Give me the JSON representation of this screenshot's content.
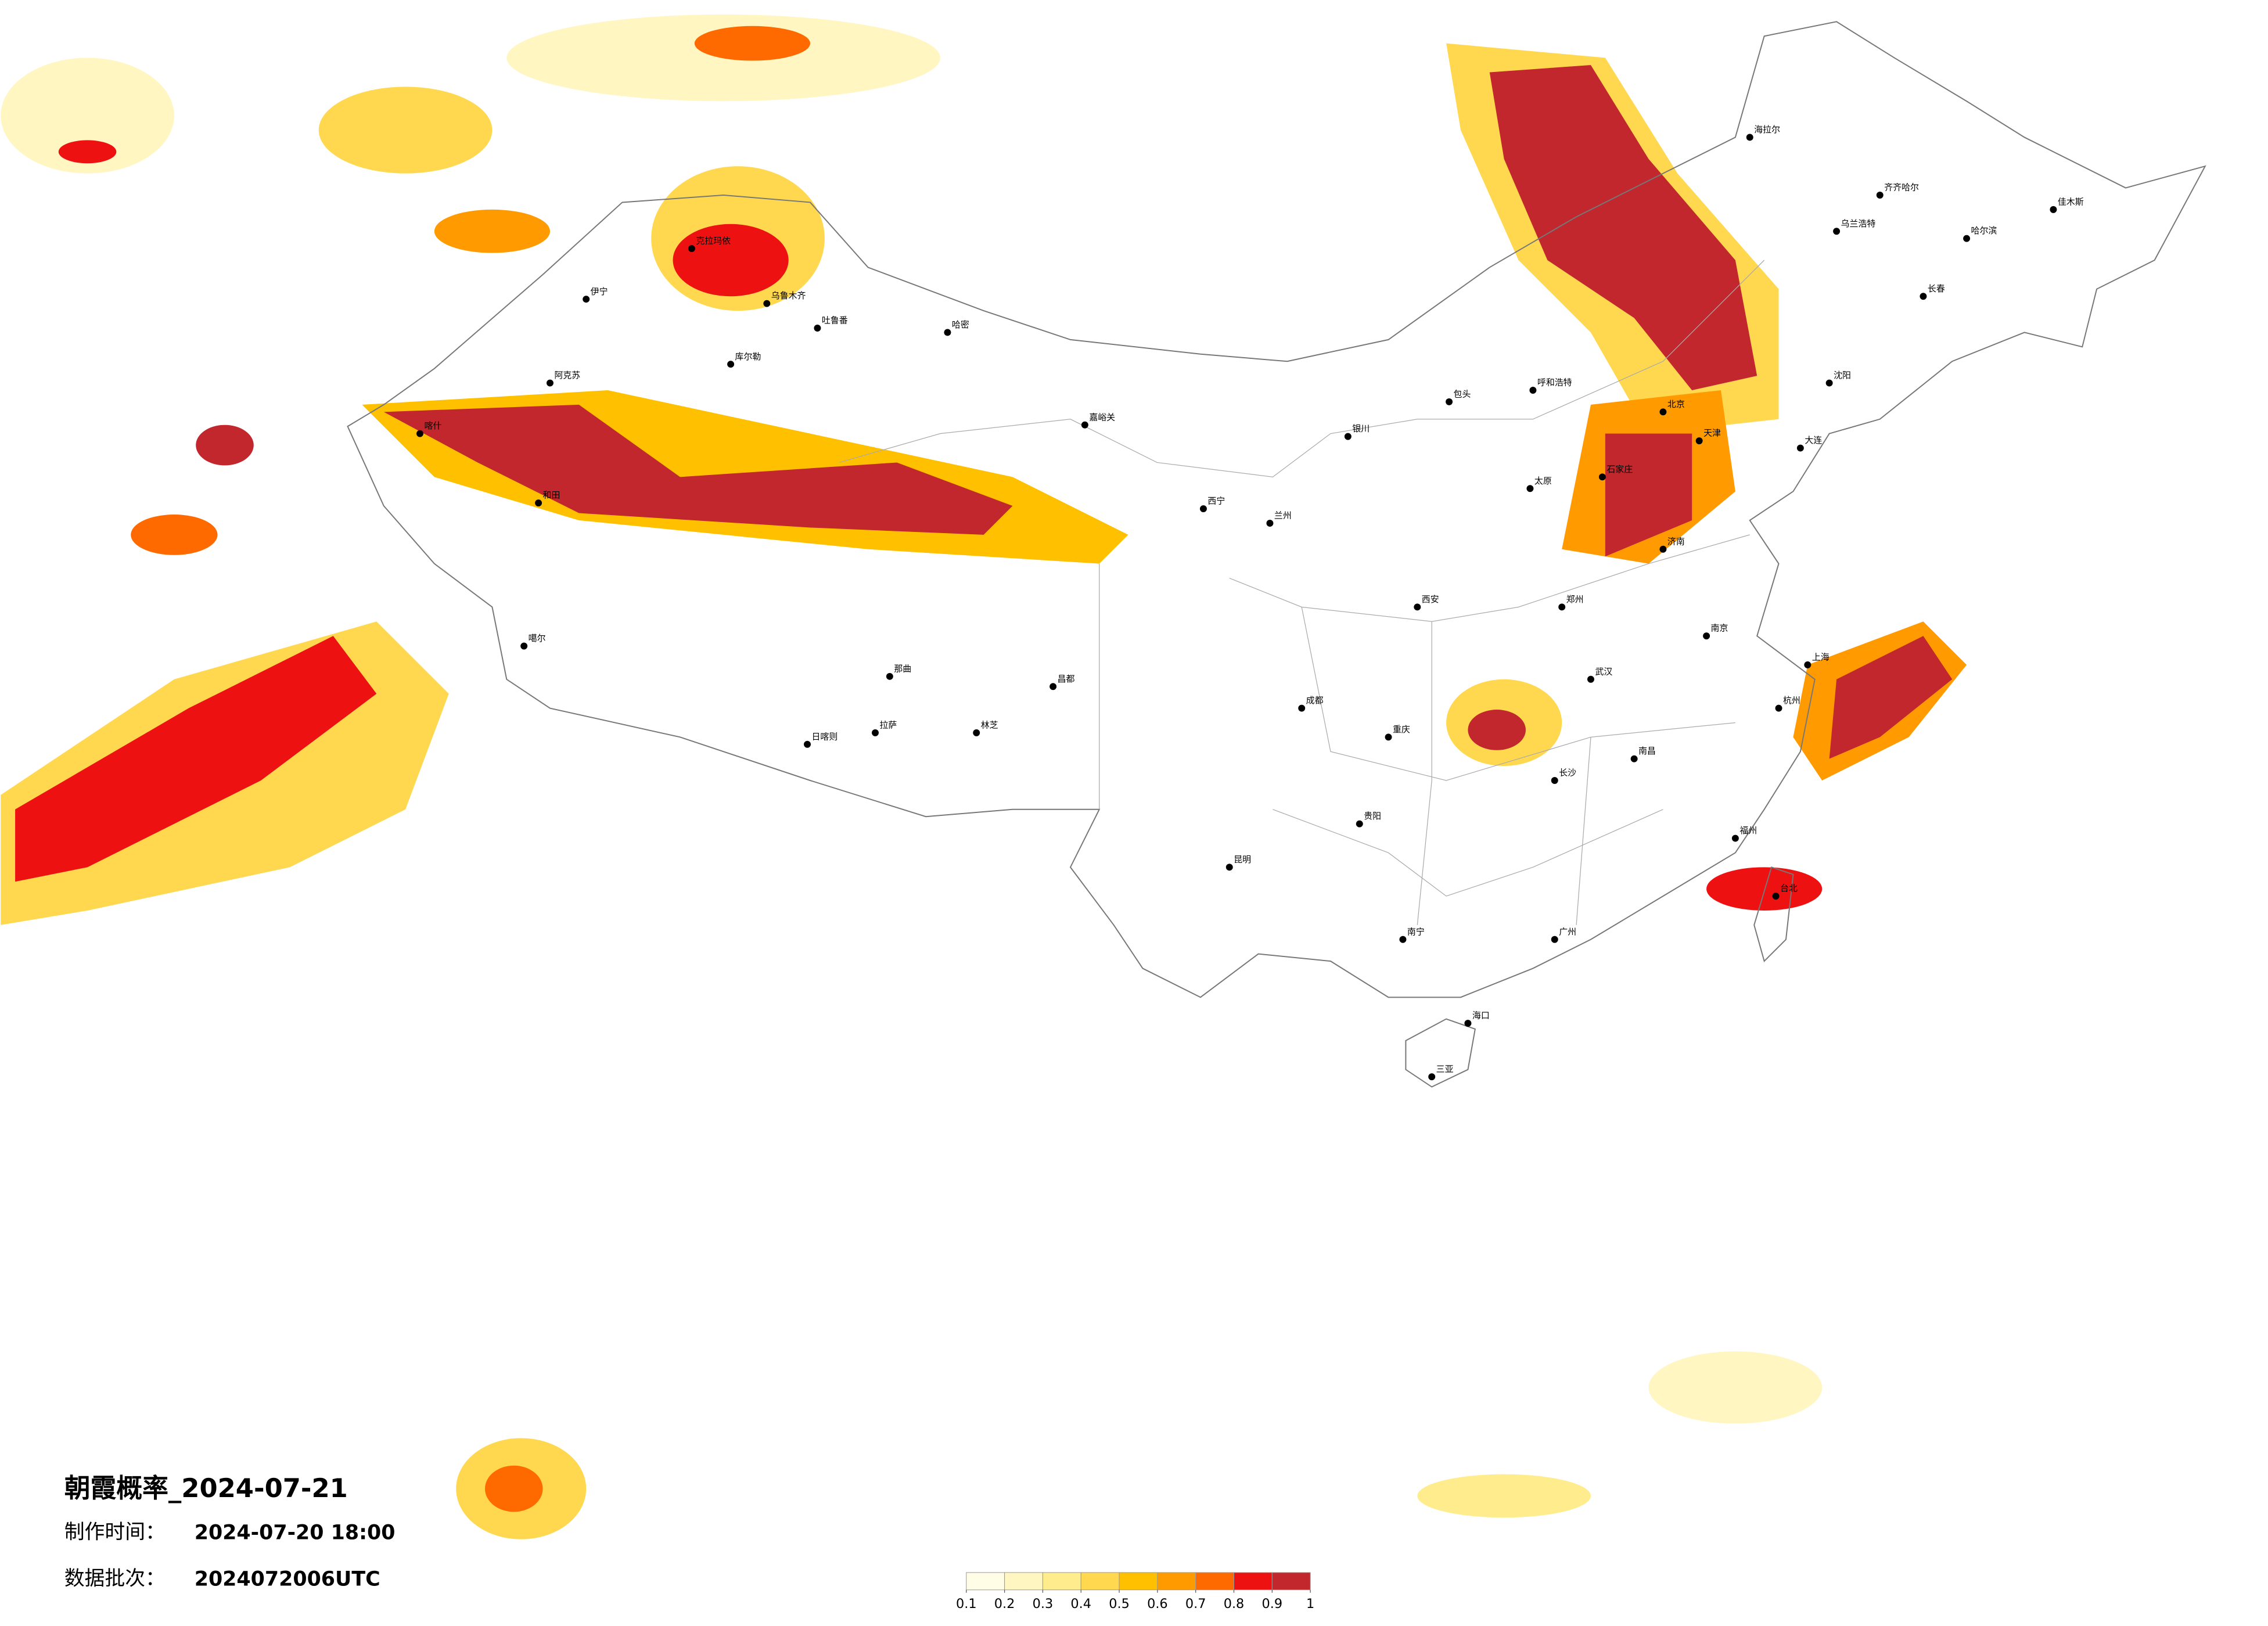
{
  "title": "朝霞概率_2024-07-21",
  "make_time_label": "制作时间：",
  "make_time": "2024-07-20 18:00",
  "batch_label": "数据批次：",
  "batch": "2024072006UTC",
  "legend": {
    "ticks": [
      0.1,
      0.2,
      0.3,
      0.4,
      0.5,
      0.6,
      0.7,
      0.8,
      0.9,
      1
    ],
    "colors": [
      "#fffde6",
      "#fff6c2",
      "#ffec8c",
      "#ffd84f",
      "#ffc000",
      "#ff9a00",
      "#ff6a00",
      "#ee1111",
      "#c1272d"
    ]
  },
  "cities": [
    "伊宁",
    "克拉玛依",
    "乌鲁木齐",
    "吐鲁番",
    "哈密",
    "库尔勒",
    "阿克苏",
    "喀什",
    "和田",
    "噶尔",
    "日喀则",
    "拉萨",
    "林芝",
    "那曲",
    "昌都",
    "嘉峪关",
    "西宁",
    "兰州",
    "银川",
    "呼和浩特",
    "包头",
    "北京",
    "天津",
    "石家庄",
    "太原",
    "济南",
    "郑州",
    "西安",
    "成都",
    "重庆",
    "武汉",
    "南京",
    "上海",
    "杭州",
    "长沙",
    "南昌",
    "福州",
    "广州",
    "南宁",
    "贵阳",
    "昆明",
    "海口",
    "三亚",
    "哈尔滨",
    "长春",
    "沈阳",
    "大连",
    "海拉尔",
    "台北",
    "乌兰浩特",
    "齐齐哈尔",
    "佳木斯"
  ]
}
